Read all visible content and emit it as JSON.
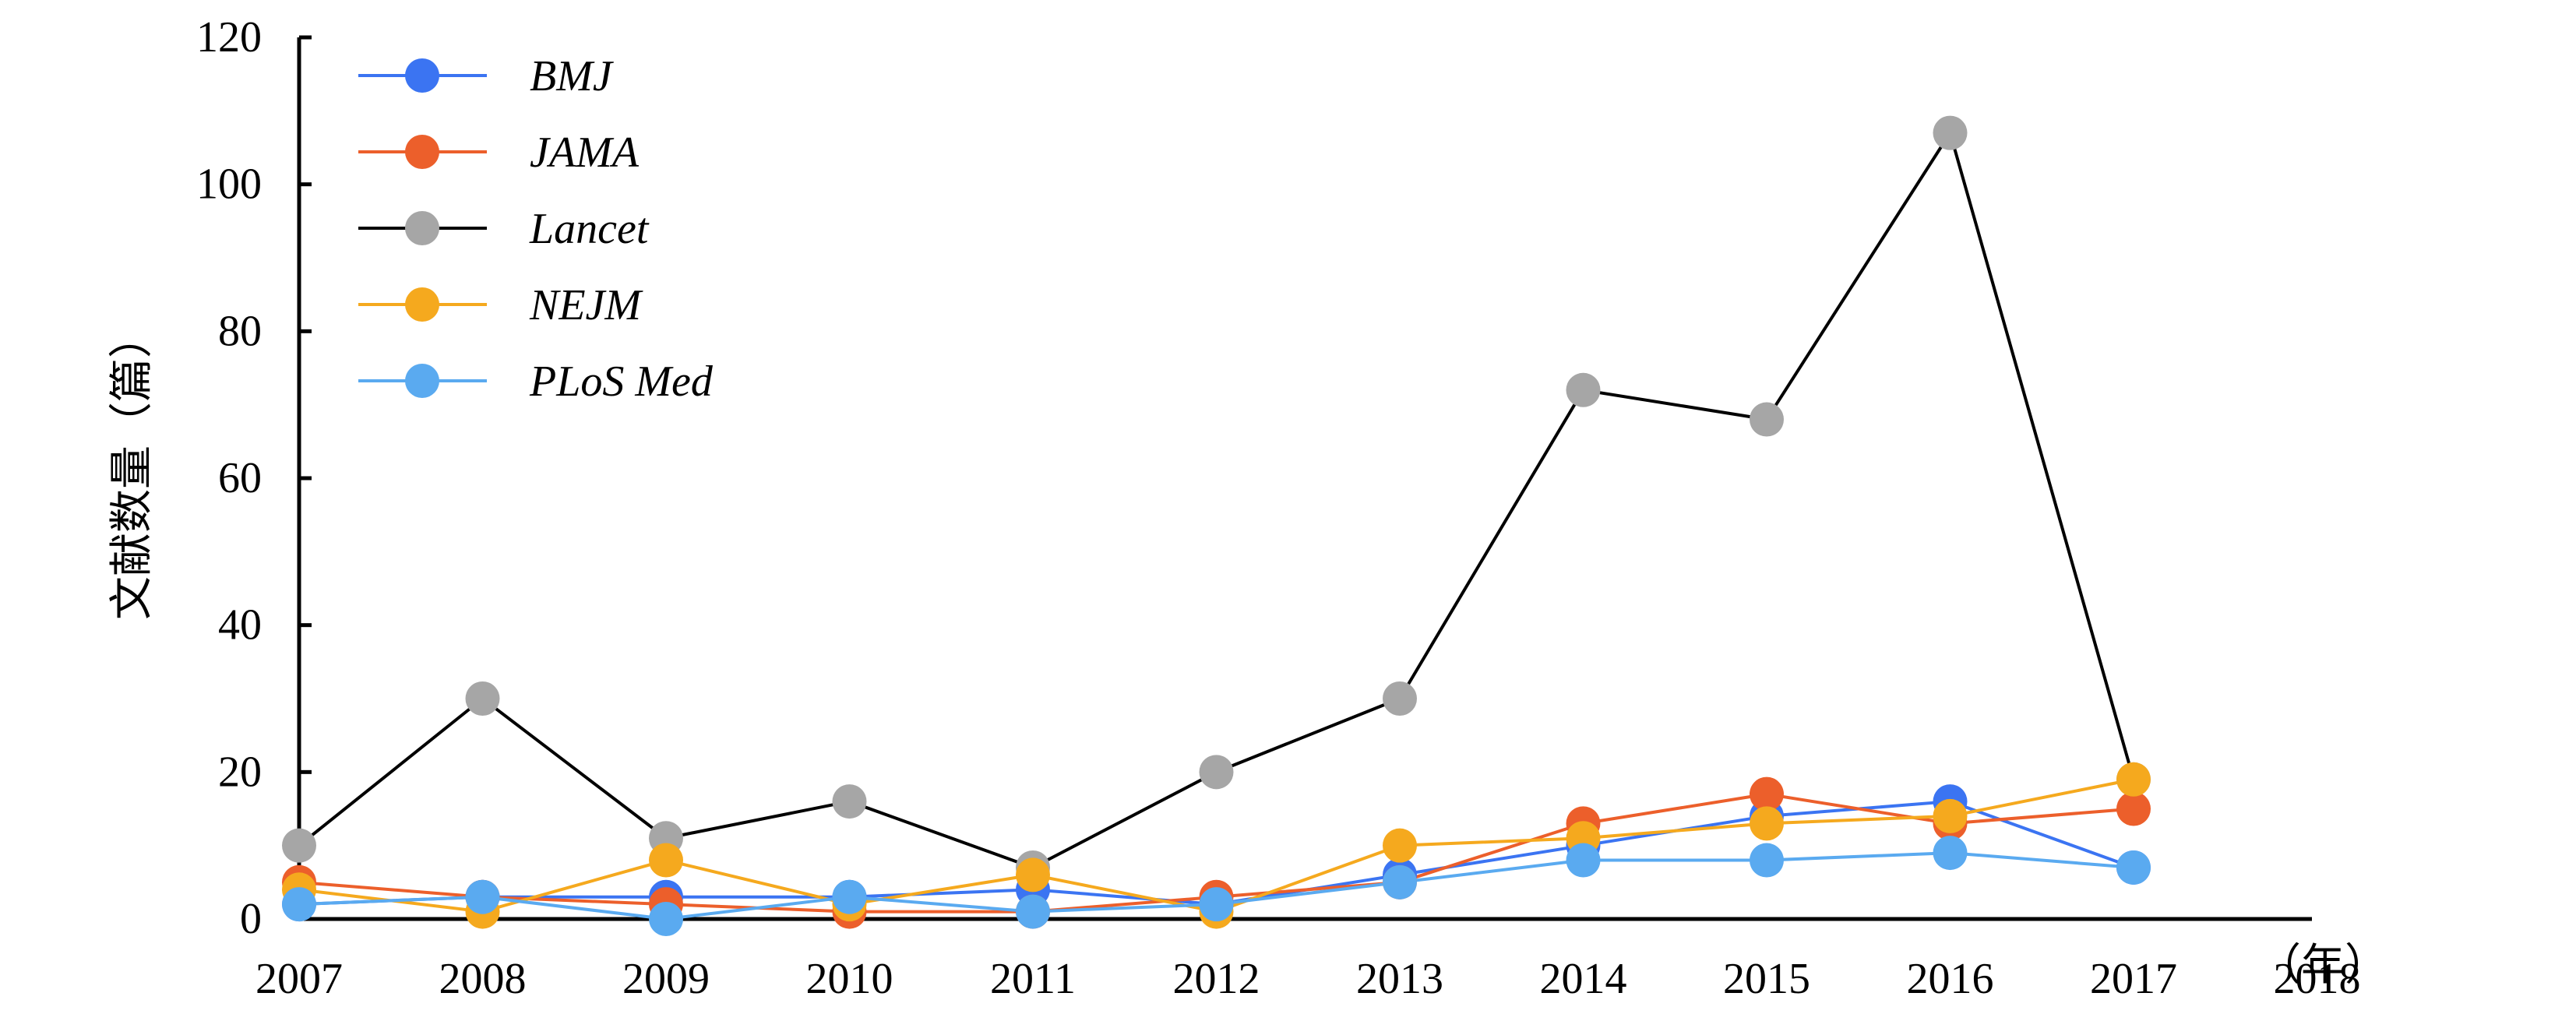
{
  "chart_data": {
    "type": "line",
    "title": "",
    "xlabel": "（年）",
    "ylabel": "文献数量（篇）",
    "x": [
      "2007",
      "2008",
      "2009",
      "2010",
      "2011",
      "2012",
      "2013",
      "2014",
      "2015",
      "2016",
      "2017"
    ],
    "x_ticks": [
      "2007",
      "2008",
      "2009",
      "2010",
      "2011",
      "2012",
      "2013",
      "2014",
      "2015",
      "2016",
      "2017",
      "2018"
    ],
    "ylim": [
      0,
      120
    ],
    "y_ticks": [
      0,
      20,
      40,
      60,
      80,
      100,
      120
    ],
    "grid": false,
    "legend_position": "top-left",
    "series": [
      {
        "name": "BMJ",
        "color": "#3b74f2",
        "values": [
          2,
          3,
          3,
          3,
          4,
          2,
          6,
          10,
          14,
          16,
          7
        ]
      },
      {
        "name": "JAMA",
        "color": "#ec5f2b",
        "values": [
          5,
          3,
          2,
          1,
          1,
          3,
          5,
          13,
          17,
          13,
          15
        ]
      },
      {
        "name": "Lancet",
        "color": "#a6a6a6",
        "line_color": "#000000",
        "values": [
          10,
          30,
          11,
          16,
          7,
          20,
          30,
          72,
          68,
          107,
          19
        ]
      },
      {
        "name": "NEJM",
        "color": "#f5a91e",
        "values": [
          4,
          1,
          8,
          2,
          6,
          1,
          10,
          11,
          13,
          14,
          19
        ]
      },
      {
        "name": "PLoS Med",
        "color": "#5aaaf0",
        "values": [
          2,
          3,
          0,
          3,
          1,
          2,
          5,
          8,
          8,
          9,
          7
        ]
      }
    ]
  }
}
